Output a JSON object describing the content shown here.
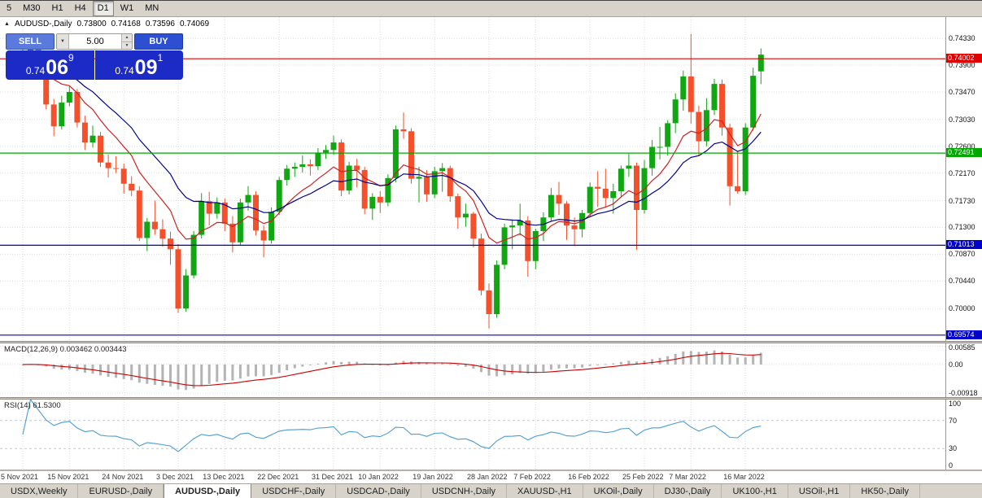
{
  "toolbar": {
    "timeframes": [
      {
        "label": "5",
        "active": false
      },
      {
        "label": "M30",
        "active": false
      },
      {
        "label": "H1",
        "active": false
      },
      {
        "label": "H4",
        "active": false
      },
      {
        "label": "D1",
        "active": true
      },
      {
        "label": "W1",
        "active": false
      },
      {
        "label": "MN",
        "active": false
      }
    ]
  },
  "chart_info": {
    "symbol": "AUDUSD-,Daily",
    "open": "0.73800",
    "high": "0.74168",
    "low": "0.73596",
    "close": "0.74069"
  },
  "trade_panel": {
    "sell_label": "SELL",
    "buy_label": "BUY",
    "volume": "5.00",
    "sell_price": {
      "big": "0.74",
      "pips": "06",
      "frac": "9"
    },
    "buy_price": {
      "big": "0.74",
      "pips": "09",
      "frac": "1"
    }
  },
  "chart_data": {
    "type": "candlestick",
    "symbol": "AUDUSD-,Daily",
    "colors": {
      "bull": "#10a712",
      "bear": "#f4502b"
    },
    "price_axis": {
      "min": 0.6948,
      "max": 0.7467,
      "ticks": [
        0.7433,
        0.739,
        0.7347,
        0.7303,
        0.726,
        0.7217,
        0.7173,
        0.713,
        0.7087,
        0.7044,
        0.7
      ]
    },
    "hlines": [
      {
        "price": 0.74002,
        "label": "0.74002",
        "color": "#e00000"
      },
      {
        "price": 0.72491,
        "label": "0.72491",
        "color": "#00a800"
      },
      {
        "price": 0.71013,
        "label": "0.71013",
        "color": "#0000cc"
      },
      {
        "price": 0.69574,
        "label": "0.69574",
        "color": "#0000cc"
      }
    ],
    "ma": [
      {
        "type": "ema",
        "period": 9,
        "color": "#cc2222"
      },
      {
        "type": "ema",
        "period": 18,
        "color": "#00008b"
      }
    ],
    "x_labels": [
      {
        "i": 0,
        "t": "5 Nov 2021"
      },
      {
        "i": 6,
        "t": "15 Nov 2021"
      },
      {
        "i": 13,
        "t": "24 Nov 2021"
      },
      {
        "i": 20,
        "t": "3 Dec 2021"
      },
      {
        "i": 26,
        "t": "13 Dec 2021"
      },
      {
        "i": 33,
        "t": "22 Dec 2021"
      },
      {
        "i": 40,
        "t": "31 Dec 2021"
      },
      {
        "i": 46,
        "t": "10 Jan 2022"
      },
      {
        "i": 53,
        "t": "19 Jan 2022"
      },
      {
        "i": 60,
        "t": "28 Jan 2022"
      },
      {
        "i": 66,
        "t": "7 Feb 2022"
      },
      {
        "i": 73,
        "t": "16 Feb 2022"
      },
      {
        "i": 80,
        "t": "25 Feb 2022"
      },
      {
        "i": 86,
        "t": "7 Mar 2022"
      },
      {
        "i": 93,
        "t": "16 Mar 2022"
      }
    ],
    "candles": [
      [
        0.7399,
        0.7417,
        0.7388,
        0.7402
      ],
      [
        0.7402,
        0.7432,
        0.7396,
        0.742
      ],
      [
        0.742,
        0.7428,
        0.7371,
        0.738
      ],
      [
        0.738,
        0.7388,
        0.7319,
        0.7327
      ],
      [
        0.7327,
        0.7336,
        0.7276,
        0.7292
      ],
      [
        0.7292,
        0.7341,
        0.7287,
        0.733
      ],
      [
        0.733,
        0.7356,
        0.7324,
        0.7347
      ],
      [
        0.7347,
        0.7352,
        0.729,
        0.7298
      ],
      [
        0.7298,
        0.7309,
        0.7254,
        0.7266
      ],
      [
        0.7266,
        0.7293,
        0.7258,
        0.7277
      ],
      [
        0.7277,
        0.7283,
        0.7227,
        0.7234
      ],
      [
        0.7234,
        0.7247,
        0.721,
        0.7225
      ],
      [
        0.7225,
        0.7244,
        0.7217,
        0.7224
      ],
      [
        0.7224,
        0.7232,
        0.7184,
        0.72
      ],
      [
        0.72,
        0.7212,
        0.718,
        0.7189
      ],
      [
        0.7189,
        0.7196,
        0.7108,
        0.7113
      ],
      [
        0.7113,
        0.7145,
        0.7092,
        0.7139
      ],
      [
        0.7139,
        0.7173,
        0.7118,
        0.7127
      ],
      [
        0.7127,
        0.7143,
        0.7099,
        0.7112
      ],
      [
        0.7112,
        0.7123,
        0.707,
        0.7095
      ],
      [
        0.7095,
        0.7103,
        0.6993,
        0.7
      ],
      [
        0.7,
        0.7063,
        0.6995,
        0.7053
      ],
      [
        0.7053,
        0.7124,
        0.7048,
        0.7118
      ],
      [
        0.7118,
        0.7185,
        0.7112,
        0.7172
      ],
      [
        0.7172,
        0.7187,
        0.7133,
        0.7152
      ],
      [
        0.7152,
        0.7178,
        0.7144,
        0.717
      ],
      [
        0.717,
        0.7176,
        0.7124,
        0.7136
      ],
      [
        0.7136,
        0.7148,
        0.709,
        0.7106
      ],
      [
        0.7106,
        0.7176,
        0.7101,
        0.717
      ],
      [
        0.717,
        0.7196,
        0.7157,
        0.7182
      ],
      [
        0.7182,
        0.7188,
        0.7117,
        0.7125
      ],
      [
        0.7125,
        0.7133,
        0.7082,
        0.7109
      ],
      [
        0.7109,
        0.7162,
        0.7104,
        0.7155
      ],
      [
        0.7155,
        0.7211,
        0.715,
        0.7206
      ],
      [
        0.7206,
        0.723,
        0.7197,
        0.7224
      ],
      [
        0.7224,
        0.7234,
        0.7211,
        0.7227
      ],
      [
        0.7227,
        0.7245,
        0.7218,
        0.7231
      ],
      [
        0.7231,
        0.7239,
        0.7213,
        0.7228
      ],
      [
        0.7228,
        0.7257,
        0.7222,
        0.725
      ],
      [
        0.725,
        0.7262,
        0.724,
        0.7254
      ],
      [
        0.7254,
        0.7277,
        0.7246,
        0.7266
      ],
      [
        0.7266,
        0.7271,
        0.718,
        0.7189
      ],
      [
        0.7189,
        0.7235,
        0.7183,
        0.7229
      ],
      [
        0.7229,
        0.724,
        0.7194,
        0.7222
      ],
      [
        0.7222,
        0.7227,
        0.7151,
        0.716
      ],
      [
        0.716,
        0.7185,
        0.7142,
        0.7179
      ],
      [
        0.7179,
        0.7188,
        0.7153,
        0.717
      ],
      [
        0.717,
        0.7215,
        0.7164,
        0.7209
      ],
      [
        0.7209,
        0.7293,
        0.7202,
        0.7287
      ],
      [
        0.7287,
        0.7314,
        0.7272,
        0.7284
      ],
      [
        0.7284,
        0.7289,
        0.72,
        0.7208
      ],
      [
        0.7208,
        0.7227,
        0.717,
        0.7211
      ],
      [
        0.7211,
        0.7222,
        0.7171,
        0.7183
      ],
      [
        0.7183,
        0.7227,
        0.7177,
        0.722
      ],
      [
        0.722,
        0.7233,
        0.7187,
        0.7225
      ],
      [
        0.7225,
        0.7229,
        0.7171,
        0.718
      ],
      [
        0.718,
        0.7184,
        0.7128,
        0.7146
      ],
      [
        0.7146,
        0.7168,
        0.7131,
        0.7152
      ],
      [
        0.7152,
        0.7155,
        0.7098,
        0.7112
      ],
      [
        0.7112,
        0.712,
        0.7021,
        0.7029
      ],
      [
        0.7029,
        0.704,
        0.6968,
        0.6991
      ],
      [
        0.6991,
        0.7077,
        0.6985,
        0.707
      ],
      [
        0.707,
        0.7136,
        0.7063,
        0.713
      ],
      [
        0.713,
        0.7143,
        0.7095,
        0.7133
      ],
      [
        0.7133,
        0.7168,
        0.7117,
        0.7141
      ],
      [
        0.7141,
        0.7148,
        0.7051,
        0.7076
      ],
      [
        0.7076,
        0.7128,
        0.7063,
        0.7124
      ],
      [
        0.7124,
        0.7154,
        0.7108,
        0.7146
      ],
      [
        0.7146,
        0.7193,
        0.714,
        0.7182
      ],
      [
        0.7182,
        0.7203,
        0.715,
        0.7168
      ],
      [
        0.7168,
        0.7172,
        0.711,
        0.7133
      ],
      [
        0.7133,
        0.7146,
        0.71,
        0.7127
      ],
      [
        0.7127,
        0.7158,
        0.7114,
        0.7153
      ],
      [
        0.7153,
        0.7202,
        0.7147,
        0.7195
      ],
      [
        0.7195,
        0.722,
        0.7163,
        0.7192
      ],
      [
        0.7192,
        0.7224,
        0.7162,
        0.7177
      ],
      [
        0.7177,
        0.72,
        0.7152,
        0.7188
      ],
      [
        0.7188,
        0.7229,
        0.718,
        0.7224
      ],
      [
        0.7224,
        0.7248,
        0.7211,
        0.7229
      ],
      [
        0.7229,
        0.7234,
        0.7094,
        0.7158
      ],
      [
        0.7158,
        0.7238,
        0.7152,
        0.7225
      ],
      [
        0.7225,
        0.727,
        0.7213,
        0.7259
      ],
      [
        0.7259,
        0.7291,
        0.7239,
        0.7259
      ],
      [
        0.7259,
        0.7302,
        0.7245,
        0.7297
      ],
      [
        0.7297,
        0.7345,
        0.7281,
        0.7335
      ],
      [
        0.7335,
        0.7381,
        0.7317,
        0.7372
      ],
      [
        0.7372,
        0.744,
        0.7296,
        0.7315
      ],
      [
        0.7315,
        0.7325,
        0.7245,
        0.7268
      ],
      [
        0.7268,
        0.7337,
        0.726,
        0.7318
      ],
      [
        0.7318,
        0.7368,
        0.731,
        0.736
      ],
      [
        0.736,
        0.7367,
        0.7277,
        0.729
      ],
      [
        0.729,
        0.7296,
        0.7165,
        0.7196
      ],
      [
        0.7196,
        0.7251,
        0.7184,
        0.7188
      ],
      [
        0.7188,
        0.7297,
        0.7182,
        0.729
      ],
      [
        0.729,
        0.7386,
        0.7285,
        0.7373
      ],
      [
        0.738,
        0.74168,
        0.73596,
        0.74069
      ]
    ],
    "macd": {
      "label": "MACD(12,26,9)",
      "values_text": "0.003462 0.003443",
      "params": [
        12,
        26,
        9
      ],
      "hist_color": "#b4b4b4",
      "signal_color": "#cc0000",
      "range": [
        -0.0105,
        0.0068
      ],
      "yticks": [
        {
          "v": 0.00585,
          "t": "0.00585"
        },
        {
          "v": 0,
          "t": "0.00"
        },
        {
          "v": -0.00918,
          "t": "-0.00918"
        }
      ]
    },
    "rsi": {
      "label": "RSI(14)",
      "value_text": "61.5300",
      "period": 14,
      "color": "#4a9cd3",
      "levels": [
        70,
        30
      ],
      "yticks": [
        {
          "v": 100,
          "t": "100"
        },
        {
          "v": 70,
          "t": "70"
        },
        {
          "v": 30,
          "t": "30"
        },
        {
          "v": 0,
          "t": "0"
        }
      ]
    }
  },
  "tabs": [
    {
      "label": "USDX,Weekly",
      "active": false
    },
    {
      "label": "EURUSD-,Daily",
      "active": false
    },
    {
      "label": "AUDUSD-,Daily",
      "active": true
    },
    {
      "label": "USDCHF-,Daily",
      "active": false
    },
    {
      "label": "USDCAD-,Daily",
      "active": false
    },
    {
      "label": "USDCNH-,Daily",
      "active": false
    },
    {
      "label": "XAUUSD-,H1",
      "active": false
    },
    {
      "label": "UKOil-,Daily",
      "active": false
    },
    {
      "label": "DJ30-,Daily",
      "active": false
    },
    {
      "label": "UK100-,H1",
      "active": false
    },
    {
      "label": "USOil-,H1",
      "active": false
    },
    {
      "label": "HK50-,Daily",
      "active": false
    }
  ]
}
